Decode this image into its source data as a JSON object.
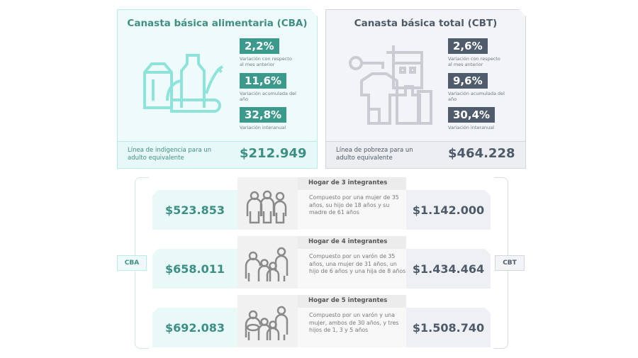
{
  "cba": {
    "title": "Canasta básica alimentaria (CBA)",
    "stats": [
      {
        "value": "2,2%",
        "label": "Variación con respecto al mes anterior"
      },
      {
        "value": "11,6%",
        "label": "Variación acumulada del año"
      },
      {
        "value": "32,8%",
        "label": "Variación interanual"
      }
    ],
    "footer_label": "Línea de indigencia para un adulto equivalente",
    "footer_value": "$212.949",
    "icon": "groceries-icon"
  },
  "cbt": {
    "title": "Canasta básica total (CBT)",
    "stats": [
      {
        "value": "2,6%",
        "label": "Variación con respecto al mes anterior"
      },
      {
        "value": "9,6%",
        "label": "Variación acumulada del año"
      },
      {
        "value": "30,4%",
        "label": "Variación interanual"
      }
    ],
    "footer_label": "Línea de pobreza para un adulto equivalente",
    "footer_value": "$464.228",
    "icon": "goods-services-icon"
  },
  "side_labels": {
    "left": "CBA",
    "right": "CBT"
  },
  "households": [
    {
      "title": "Hogar de 3 integrantes",
      "desc": "Compuesto por una mujer de 35 años, su hijo de 18 años y su madre de 61 años",
      "cba": "$523.853",
      "cbt": "$1.142.000"
    },
    {
      "title": "Hogar de 4 integrantes",
      "desc": "Compuesto por un varón de 35 años, una mujer de 31 años, un hijo de 6 años y una hija de 8 años",
      "cba": "$658.011",
      "cbt": "$1.434.464"
    },
    {
      "title": "Hogar de 5 integrantes",
      "desc": "Compuesto por un varón y una mujer, ambos de 30 años, y tres hijos de 1, 3 y 5 años",
      "cba": "$692.083",
      "cbt": "$1.508.740"
    }
  ],
  "colors": {
    "cba_accent": "#3c9a8d",
    "cbt_accent": "#4e5c6c"
  }
}
